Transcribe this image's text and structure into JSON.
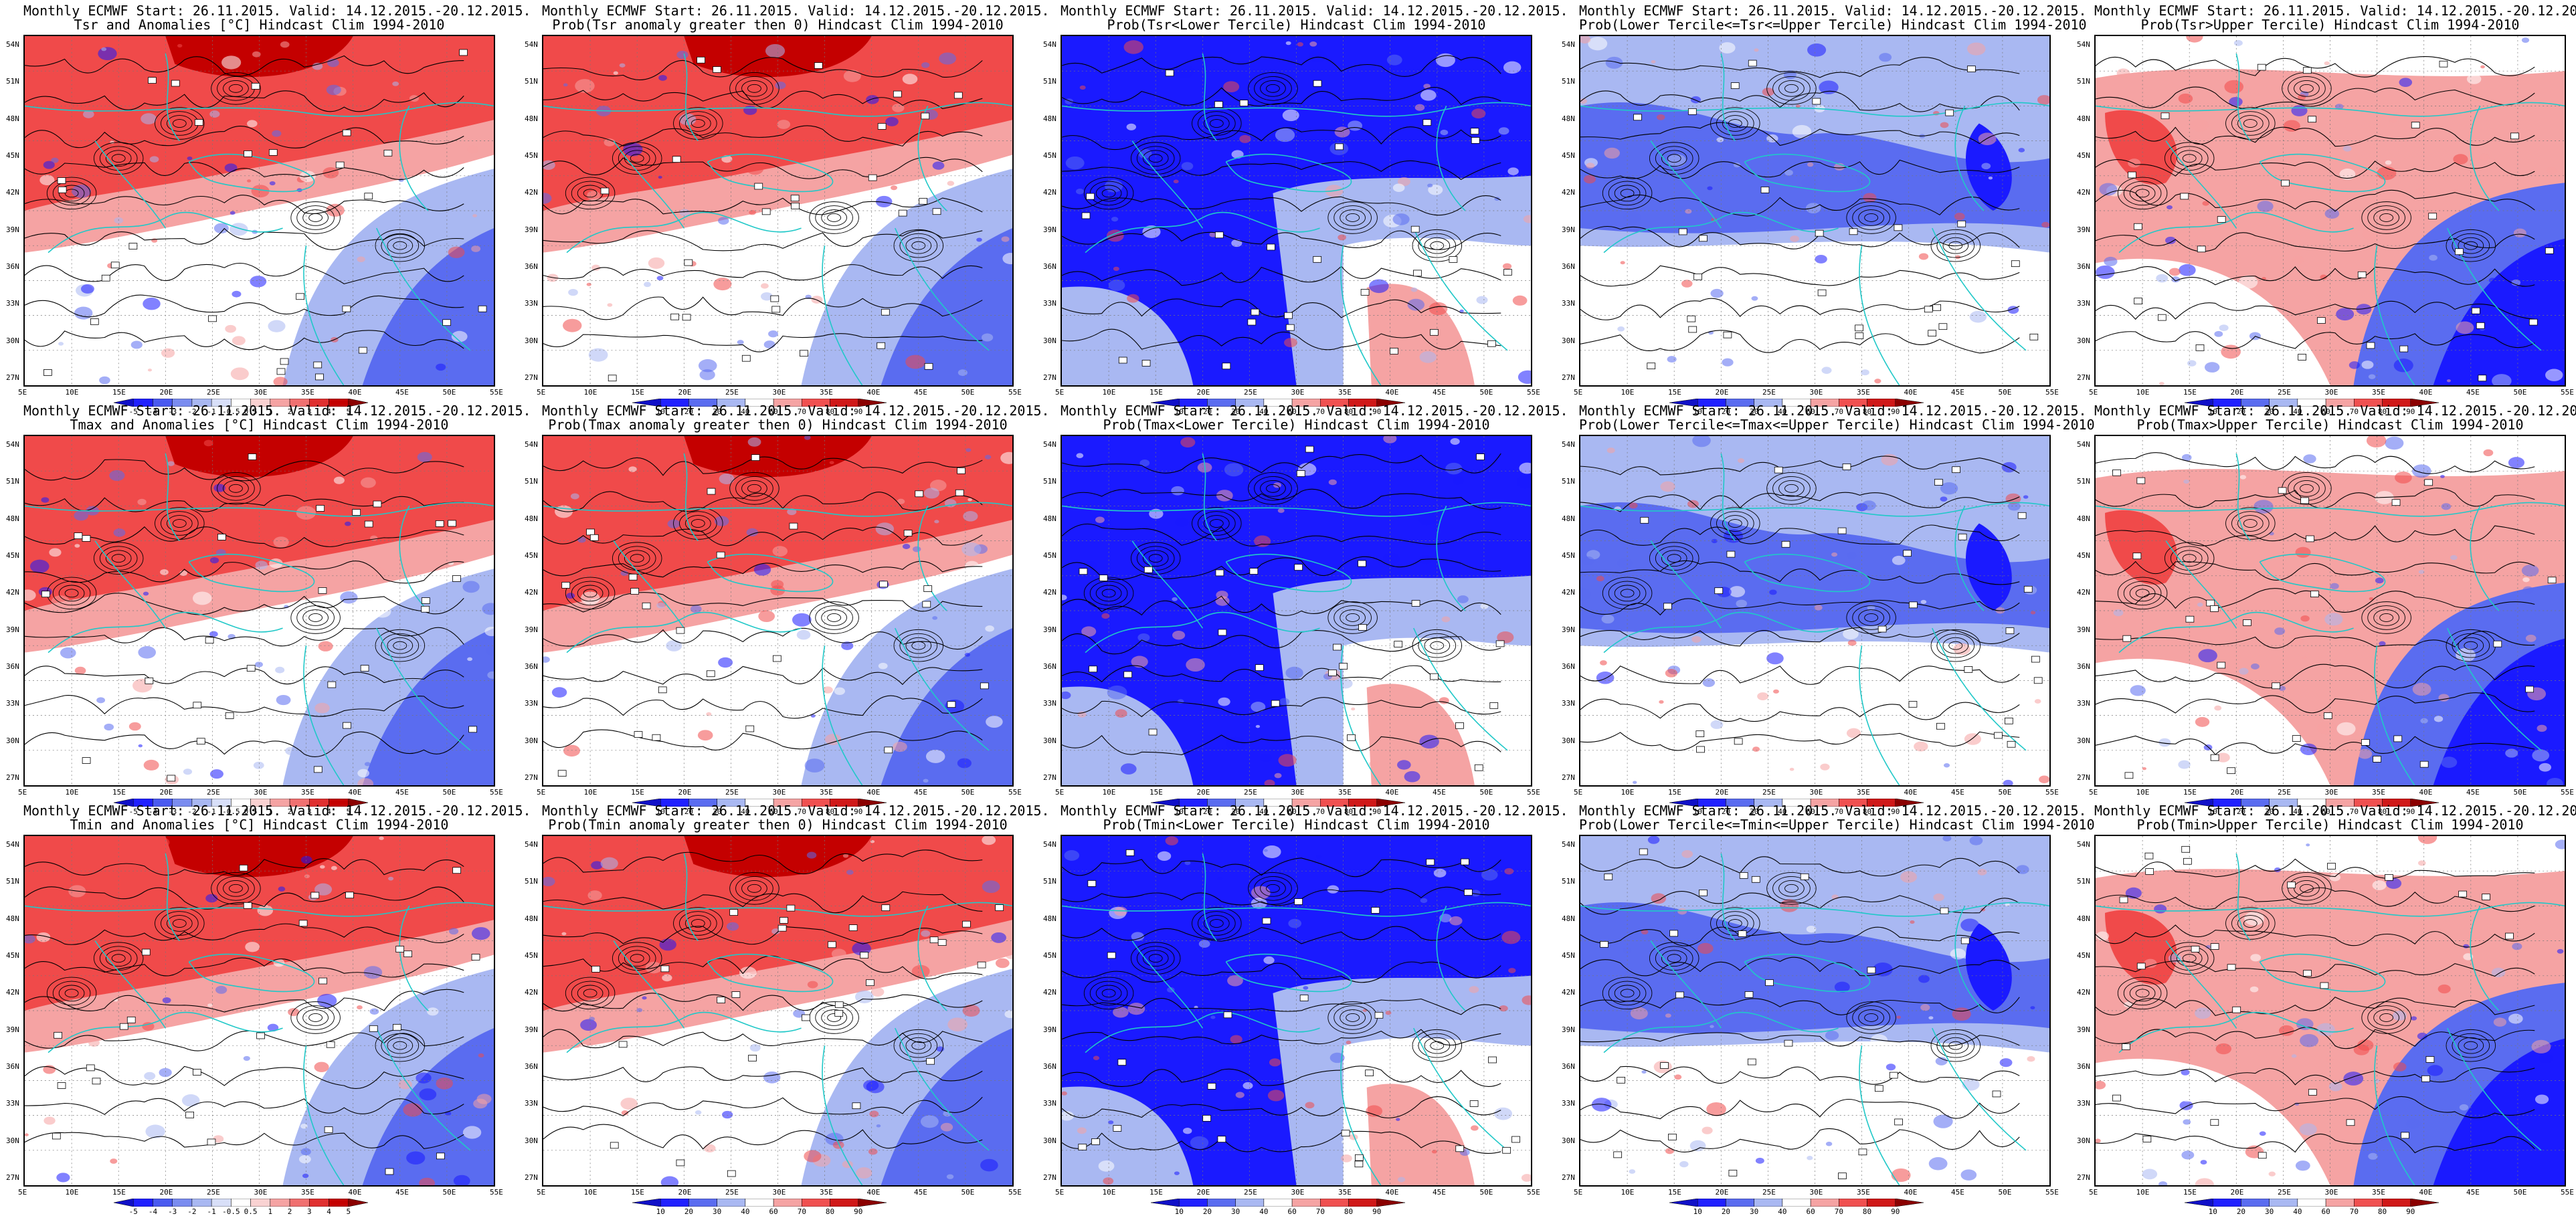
{
  "common": {
    "title_line1": "Monthly ECMWF Start: 26.11.2015. Valid: 14.12.2015.-20.12.2015.",
    "lat_labels": [
      "54N",
      "51N",
      "48N",
      "45N",
      "42N",
      "39N",
      "36N",
      "33N",
      "30N",
      "27N"
    ],
    "lon_labels": [
      "5E",
      "10E",
      "15E",
      "20E",
      "25E",
      "30E",
      "35E",
      "40E",
      "45E",
      "50E",
      "55E"
    ],
    "anomaly_ticks": [
      "-5",
      "-4",
      "-3",
      "-2",
      "-1",
      "-0.5",
      "0.5",
      "1",
      "2",
      "3",
      "4",
      "5"
    ],
    "prob_ticks": [
      "10",
      "20",
      "30",
      "40",
      "60",
      "70",
      "80",
      "90"
    ],
    "colors": {
      "deep_blue": "#1a1aff",
      "mid_blue": "#5a6cf0",
      "light_blue": "#a9b8f2",
      "white": "#ffffff",
      "light_red": "#f5a3a3",
      "mid_red": "#f04a4a",
      "deep_red": "#c40000",
      "coast": "#20c8c8",
      "contour": "#000000"
    }
  },
  "panels": [
    {
      "title2": "Tsr and Anomalies [°C] Hindcast Clim 1994-2010",
      "kind": "anomaly",
      "pattern": "warm_north"
    },
    {
      "title2": "Prob(Tsr anomaly greater then 0) Hindcast Clim 1994-2010",
      "kind": "prob",
      "pattern": "warm_north"
    },
    {
      "title2": "Prob(Tsr<Lower Tercile) Hindcast Clim 1994-2010",
      "kind": "prob",
      "pattern": "cold_north"
    },
    {
      "title2": "Prob(Lower Tercile<=Tsr<=Upper Tercile) Hindcast Clim 1994-2010",
      "kind": "prob",
      "pattern": "mid_blue"
    },
    {
      "title2": "Prob(Tsr>Upper Tercile) Hindcast Clim 1994-2010",
      "kind": "prob",
      "pattern": "upper"
    },
    {
      "title2": "Tmax and Anomalies [°C] Hindcast Clim 1994-2010",
      "kind": "anomaly",
      "pattern": "warm_north"
    },
    {
      "title2": "Prob(Tmax anomaly greater then 0) Hindcast Clim 1994-2010",
      "kind": "prob",
      "pattern": "warm_north"
    },
    {
      "title2": "Prob(Tmax<Lower Tercile) Hindcast Clim 1994-2010",
      "kind": "prob",
      "pattern": "cold_north"
    },
    {
      "title2": "Prob(Lower Tercile<=Tmax<=Upper Tercile) Hindcast Clim 1994-2010",
      "kind": "prob",
      "pattern": "mid_blue"
    },
    {
      "title2": "Prob(Tmax>Upper Tercile) Hindcast Clim 1994-2010",
      "kind": "prob",
      "pattern": "upper"
    },
    {
      "title2": "Tmin and Anomalies [°C] Hindcast Clim 1994-2010",
      "kind": "anomaly",
      "pattern": "warm_north"
    },
    {
      "title2": "Prob(Tmin anomaly greater then 0) Hindcast Clim 1994-2010",
      "kind": "prob",
      "pattern": "warm_north"
    },
    {
      "title2": "Prob(Tmin<Lower Tercile) Hindcast Clim 1994-2010",
      "kind": "prob",
      "pattern": "cold_north"
    },
    {
      "title2": "Prob(Lower Tercile<=Tmin<=Upper Tercile) Hindcast Clim 1994-2010",
      "kind": "prob",
      "pattern": "mid_blue"
    },
    {
      "title2": "Prob(Tmin>Upper Tercile) Hindcast Clim 1994-2010",
      "kind": "prob",
      "pattern": "upper"
    }
  ]
}
